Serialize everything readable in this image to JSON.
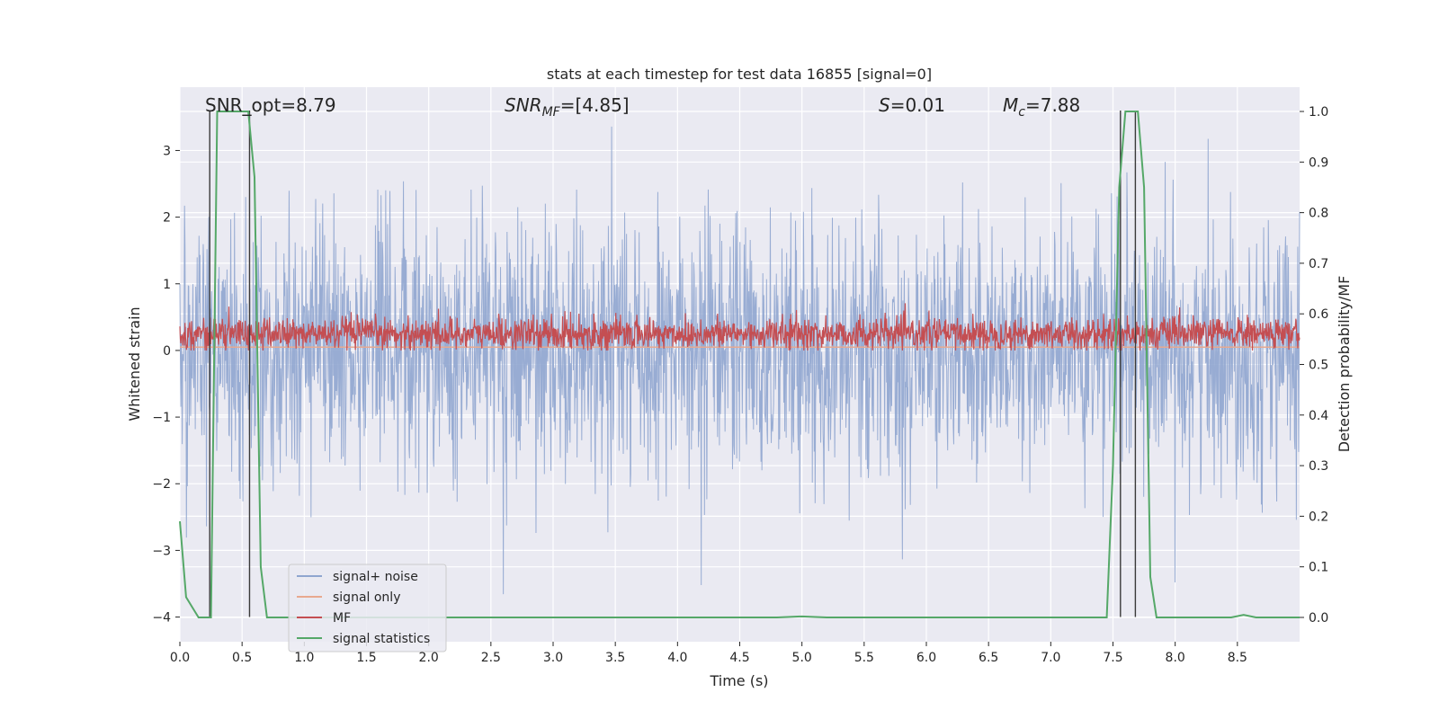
{
  "chart_data": {
    "type": "line",
    "title": "stats at each timestep for test data 16855 [signal=0]",
    "xlabel": "Time (s)",
    "ylabel": "Whitened strain",
    "y2label": "Detection probability/MF",
    "xlim": [
      0.0,
      9.0
    ],
    "ylim": [
      -4.37,
      3.95
    ],
    "y2lim": [
      -0.048,
      1.048
    ],
    "xticks": [
      0.0,
      0.5,
      1.0,
      1.5,
      2.0,
      2.5,
      3.0,
      3.5,
      4.0,
      4.5,
      5.0,
      5.5,
      6.0,
      6.5,
      7.0,
      7.5,
      8.0,
      8.5
    ],
    "xtick_labels": [
      "0.0",
      "0.5",
      "1.0",
      "1.5",
      "2.0",
      "2.5",
      "3.0",
      "3.5",
      "4.0",
      "4.5",
      "5.0",
      "5.5",
      "6.0",
      "6.5",
      "7.0",
      "7.5",
      "8.0",
      "8.5"
    ],
    "yticks": [
      -4,
      -3,
      -2,
      -1,
      0,
      1,
      2,
      3
    ],
    "ytick_labels": [
      "−4",
      "−3",
      "−2",
      "−1",
      "0",
      "1",
      "2",
      "3"
    ],
    "y2ticks": [
      0.0,
      0.1,
      0.2,
      0.3,
      0.4,
      0.5,
      0.6,
      0.7,
      0.8,
      0.9,
      1.0
    ],
    "y2tick_labels": [
      "0.0",
      "0.1",
      "0.2",
      "0.3",
      "0.4",
      "0.5",
      "0.6",
      "0.7",
      "0.8",
      "0.9",
      "1.0"
    ],
    "annotations": {
      "snr_opt": "SNR_opt=8.79",
      "snr_mf_base": "SNR",
      "snr_mf_sub": "MF",
      "snr_mf_rest": "=[4.85]",
      "s_base": "S",
      "s_rest": "=0.01",
      "mc_base": "M",
      "mc_sub": "c",
      "mc_rest": "=7.88"
    },
    "series": [
      {
        "name": "signal+ noise",
        "color": "#8fa5cf",
        "axis": "left",
        "kind": "noise",
        "std": 0.95,
        "range": [
          -4.0,
          3.6
        ]
      },
      {
        "name": "signal only",
        "color": "#e8a98f",
        "axis": "left",
        "kind": "constant",
        "value": 0.05
      },
      {
        "name": "MF",
        "color": "#c44e52",
        "axis": "left",
        "kind": "mf",
        "mean": 0.25,
        "spread": 0.12
      },
      {
        "name": "signal statistics",
        "color": "#55a868",
        "axis": "right",
        "kind": "line",
        "x": [
          0.0,
          0.05,
          0.1,
          0.15,
          0.2,
          0.25,
          0.3,
          0.35,
          0.4,
          0.45,
          0.5,
          0.55,
          0.6,
          0.65,
          0.7,
          0.75,
          0.8,
          0.9,
          1.0,
          2.0,
          3.0,
          4.0,
          4.5,
          4.8,
          5.0,
          5.2,
          6.0,
          7.0,
          7.3,
          7.45,
          7.5,
          7.55,
          7.6,
          7.65,
          7.7,
          7.75,
          7.8,
          7.85,
          7.9,
          8.0,
          8.3,
          8.45,
          8.55,
          8.65,
          8.75,
          9.0
        ],
        "y": [
          0.19,
          0.04,
          0.02,
          0.0,
          0.0,
          0.0,
          1.0,
          1.0,
          1.0,
          1.0,
          1.0,
          1.0,
          0.87,
          0.1,
          0.0,
          0.0,
          0.0,
          0.0,
          0.0,
          0.0,
          0.0,
          0.0,
          0.0,
          0.0,
          0.002,
          0.0,
          0.0,
          0.0,
          0.0,
          0.0,
          0.3,
          0.85,
          1.0,
          1.0,
          1.0,
          0.85,
          0.08,
          0.0,
          0.0,
          0.0,
          0.0,
          0.0,
          0.005,
          0.0,
          0.0,
          0.0
        ]
      }
    ],
    "vlines": [
      0.24,
      0.56,
      7.56,
      7.68
    ],
    "legend": {
      "placement": "lower-left",
      "entries": [
        "signal+ noise",
        "signal only",
        "MF",
        "signal statistics"
      ]
    }
  },
  "colors": {
    "plot_bg": "#eaeaf2",
    "grid": "#ffffff",
    "text": "#262626",
    "vline": "#3a3a3a"
  }
}
